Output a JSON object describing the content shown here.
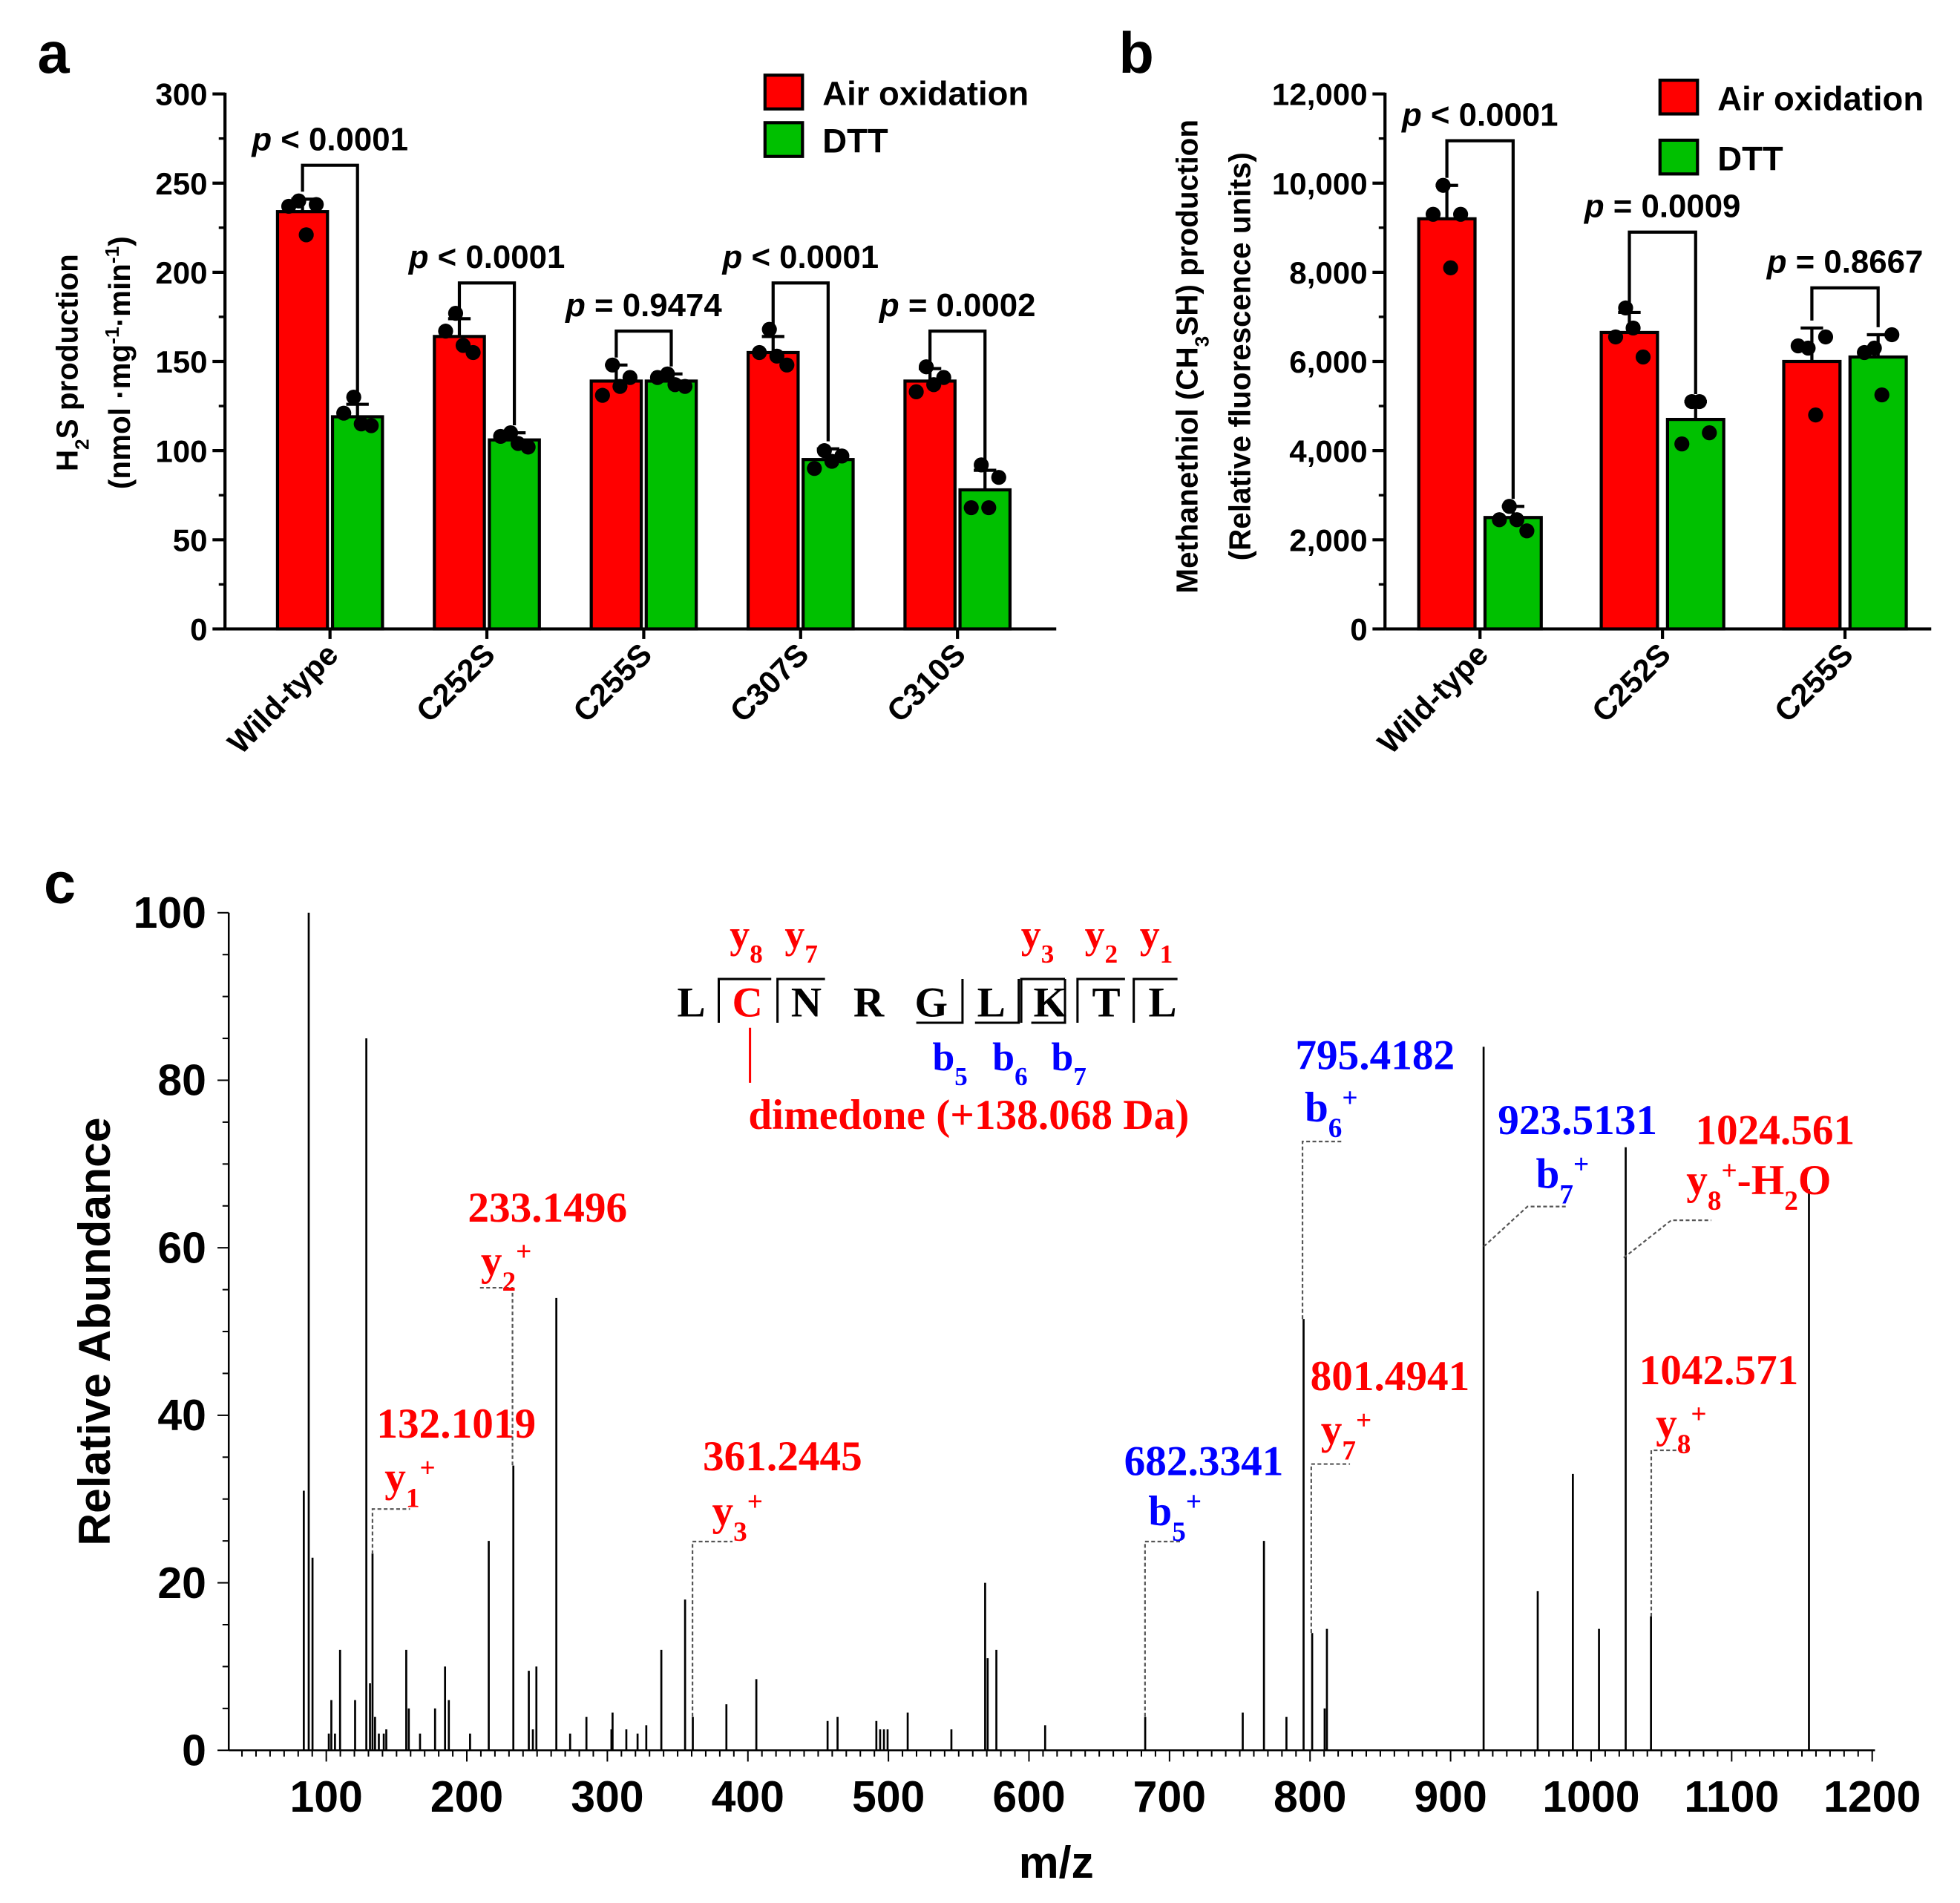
{
  "panel_labels": [
    "a",
    "b",
    "c"
  ],
  "colors": {
    "air": "#ff0000",
    "dtt": "#00c000",
    "red_text": "#ff0000",
    "blue_text": "#0000ff",
    "axis": "#000000"
  },
  "legend": {
    "air": "Air oxidation",
    "dtt": "DTT"
  },
  "p_symbol": "p",
  "chart_data": [
    {
      "id": "a",
      "type": "bar",
      "ylabel_parts": [
        {
          "t": "H"
        },
        {
          "t": "2",
          "s": "sub"
        },
        {
          "t": "S production"
        }
      ],
      "ylabel2_parts": [
        {
          "t": "(nmol ·mg"
        },
        {
          "t": "-1",
          "s": "sup"
        },
        {
          "t": "·min"
        },
        {
          "t": "-1",
          "s": "sup"
        },
        {
          "t": ")"
        }
      ],
      "ylim": [
        0,
        300
      ],
      "yticks": [
        0,
        50,
        100,
        150,
        200,
        250,
        300
      ],
      "ytick_labels": [
        "0",
        "50",
        "100",
        "150",
        "200",
        "250",
        "300"
      ],
      "yminor_step": 25,
      "categories": [
        "Wild-type",
        "C252S",
        "C255S",
        "C307S",
        "C310S"
      ],
      "series": [
        {
          "name": "Air oxidation",
          "values": [
            234,
            164,
            139,
            155,
            139
          ],
          "sd": [
            7,
            10,
            9,
            9,
            7
          ],
          "points": [
            [
              240,
              237,
              238,
              221
            ],
            [
              177,
              167,
              155,
              159
            ],
            [
              148,
              131,
              141,
              136
            ],
            [
              168,
              155,
              148,
              153
            ],
            [
              147,
              133,
              141,
              137
            ]
          ]
        },
        {
          "name": "DTT",
          "values": [
            119,
            106,
            139,
            95,
            78
          ],
          "sd": [
            7,
            4,
            4,
            6,
            11
          ],
          "points": [
            [
              130,
              121,
              114,
              115
            ],
            [
              110,
              108,
              102,
              104
            ],
            [
              143,
              141,
              136,
              137
            ],
            [
              100,
              90,
              97,
              94
            ],
            [
              92,
              68,
              85,
              68
            ]
          ]
        }
      ],
      "comparisons": [
        {
          "text": "< 0.0001",
          "level": 260
        },
        {
          "text": "< 0.0001",
          "level": 194
        },
        {
          "text": "= 0.9474",
          "level": 167
        },
        {
          "text": "< 0.0001",
          "level": 194
        },
        {
          "text": "= 0.0002",
          "level": 167
        }
      ],
      "legend_placement": "top-right"
    },
    {
      "id": "b",
      "type": "bar",
      "ylabel_parts": [
        {
          "t": "Methanethiol (CH"
        },
        {
          "t": "3",
          "s": "sub"
        },
        {
          "t": "SH) production"
        }
      ],
      "ylabel2_parts": [
        {
          "t": "(Relative fluorescence units)"
        }
      ],
      "ylim": [
        0,
        12000
      ],
      "yticks": [
        0,
        2000,
        4000,
        6000,
        8000,
        10000,
        12000
      ],
      "ytick_labels": [
        "0",
        "2,000",
        "4,000",
        "6,000",
        "8,000",
        "10,000",
        "12,000"
      ],
      "yminor_step": 1000,
      "categories": [
        "Wild-type",
        "C252S",
        "C255S"
      ],
      "series": [
        {
          "name": "Air oxidation",
          "values": [
            9200,
            6650,
            6000
          ],
          "sd": [
            750,
            450,
            750
          ],
          "points": [
            [
              9950,
              9300,
              9300,
              8100
            ],
            [
              7200,
              6550,
              6100,
              6750
            ],
            [
              6300,
              6350,
              6550,
              4800
            ]
          ]
        },
        {
          "name": "DTT",
          "values": [
            2500,
            4700,
            6100
          ],
          "sd": [
            250,
            400,
            500
          ],
          "points": [
            [
              2750,
              2450,
              2200,
              2450
            ],
            [
              5100,
              4150,
              4400,
              5100
            ],
            [
              6300,
              6200,
              6600,
              5250
            ]
          ]
        }
      ],
      "comparisons": [
        {
          "text": "< 0.0001",
          "level": 10950
        },
        {
          "text": "= 0.0009",
          "level": 8900
        },
        {
          "text": "= 0.8667",
          "level": 7650
        }
      ],
      "legend_placement": "top-right"
    },
    {
      "id": "c",
      "type": "bar",
      "subtype": "mass-spectrum",
      "xlabel": "m/z",
      "ylabel": "Relative Abundance",
      "xlim": [
        30,
        1200
      ],
      "ylim": [
        0,
        100
      ],
      "xticks": [
        100,
        200,
        300,
        400,
        500,
        600,
        700,
        800,
        900,
        1000,
        1100,
        1200
      ],
      "xtick_labels": [
        "100",
        "200",
        "300",
        "400",
        "500",
        "600",
        "700",
        "800",
        "900",
        "1000",
        "1100",
        "1200"
      ],
      "yticks": [
        0,
        20,
        40,
        60,
        80,
        100
      ],
      "ytick_labels": [
        "0",
        "20",
        "40",
        "60",
        "80",
        "100"
      ],
      "peaks": [
        [
          84.0,
          31
        ],
        [
          87.5,
          100
        ],
        [
          90.2,
          23
        ],
        [
          101.8,
          2
        ],
        [
          103.6,
          6
        ],
        [
          106.2,
          2
        ],
        [
          109.8,
          12
        ],
        [
          120.5,
          6
        ],
        [
          128.5,
          85
        ],
        [
          131.1,
          8
        ],
        [
          132.9,
          23.5
        ],
        [
          134.7,
          4
        ],
        [
          137.4,
          2
        ],
        [
          140.9,
          2
        ],
        [
          142.7,
          2.5
        ],
        [
          156.9,
          12
        ],
        [
          158.7,
          5
        ],
        [
          166.7,
          2
        ],
        [
          177.4,
          5
        ],
        [
          184.5,
          10
        ],
        [
          187.2,
          6
        ],
        [
          202.3,
          2
        ],
        [
          215.6,
          25
        ],
        [
          233.1,
          34
        ],
        [
          244.1,
          9.5
        ],
        [
          247.0,
          2.5
        ],
        [
          249.5,
          10
        ],
        [
          263.7,
          54
        ],
        [
          273.5,
          2
        ],
        [
          285.1,
          4
        ],
        [
          302.9,
          2.5
        ],
        [
          303.7,
          4.5
        ],
        [
          313.5,
          2.5
        ],
        [
          321.5,
          2
        ],
        [
          327.7,
          3
        ],
        [
          338.4,
          12
        ],
        [
          355.3,
          18
        ],
        [
          360.8,
          4
        ],
        [
          384.7,
          5.5
        ],
        [
          406.0,
          8.5
        ],
        [
          456.7,
          3.5
        ],
        [
          463.8,
          4
        ],
        [
          491.4,
          3.5
        ],
        [
          494.1,
          2.5
        ],
        [
          496.8,
          2.5
        ],
        [
          499.4,
          2.5
        ],
        [
          513.7,
          4.5
        ],
        [
          544.8,
          2.5
        ],
        [
          568.8,
          20
        ],
        [
          570.6,
          11
        ],
        [
          576.8,
          12
        ],
        [
          611.5,
          3
        ],
        [
          682.7,
          4
        ],
        [
          752.1,
          4.5
        ],
        [
          767.2,
          25
        ],
        [
          783.2,
          4
        ],
        [
          795.4,
          51.5
        ],
        [
          801.5,
          14
        ],
        [
          810.4,
          5
        ],
        [
          812.0,
          14.5
        ],
        [
          923.5,
          84
        ],
        [
          962.0,
          19
        ],
        [
          987.0,
          33
        ],
        [
          1005.6,
          14.5
        ],
        [
          1024.6,
          72
        ],
        [
          1042.6,
          16
        ],
        [
          1155.0,
          67
        ]
      ],
      "annotations": [
        {
          "value": "132.1019",
          "color": "red",
          "ion": [
            {
              "t": "y"
            },
            {
              "t": "1",
              "s": "sub"
            },
            {
              "t": "+",
              "s": "sup"
            }
          ]
        },
        {
          "value": "233.1496",
          "color": "red",
          "ion": [
            {
              "t": "y"
            },
            {
              "t": "2",
              "s": "sub"
            },
            {
              "t": "+",
              "s": "sup"
            }
          ]
        },
        {
          "value": "361.2445",
          "color": "red",
          "ion": [
            {
              "t": "y"
            },
            {
              "t": "3",
              "s": "sub"
            },
            {
              "t": "+",
              "s": "sup"
            }
          ]
        },
        {
          "value": "682.3341",
          "color": "blue",
          "ion": [
            {
              "t": "b"
            },
            {
              "t": "5",
              "s": "sub"
            },
            {
              "t": "+",
              "s": "sup"
            }
          ]
        },
        {
          "value": "795.4182",
          "color": "blue",
          "ion": [
            {
              "t": "b"
            },
            {
              "t": "6",
              "s": "sub"
            },
            {
              "t": "+",
              "s": "sup"
            }
          ]
        },
        {
          "value": "801.4941",
          "color": "red",
          "ion": [
            {
              "t": "y"
            },
            {
              "t": "7",
              "s": "sub"
            },
            {
              "t": "+",
              "s": "sup"
            }
          ]
        },
        {
          "value": "923.5131",
          "color": "blue",
          "ion": [
            {
              "t": "b"
            },
            {
              "t": "7",
              "s": "sub"
            },
            {
              "t": "+",
              "s": "sup"
            }
          ]
        },
        {
          "value": "1024.561",
          "color": "red",
          "ion": [
            {
              "t": "y"
            },
            {
              "t": "8",
              "s": "sub"
            },
            {
              "t": "+",
              "s": "sup"
            },
            {
              "t": "-H"
            },
            {
              "t": "2",
              "s": "sub"
            },
            {
              "t": "O"
            }
          ]
        },
        {
          "value": "1042.571",
          "color": "red",
          "ion": [
            {
              "t": "y"
            },
            {
              "t": "8",
              "s": "sub"
            },
            {
              "t": "+",
              "s": "sup"
            }
          ]
        }
      ],
      "peptide": {
        "residues": [
          "L",
          "C",
          "N",
          "R",
          "G",
          "L",
          "K",
          "T",
          "L"
        ],
        "modified_index": 1,
        "y_ions": [
          {
            "b": "y",
            "n": "8"
          },
          {
            "b": "y",
            "n": "7"
          },
          {
            "b": "y",
            "n": "3"
          },
          {
            "b": "y",
            "n": "2"
          },
          {
            "b": "y",
            "n": "1"
          }
        ],
        "b_ions": [
          {
            "b": "b",
            "n": "5"
          },
          {
            "b": "b",
            "n": "6"
          },
          {
            "b": "b",
            "n": "7"
          }
        ],
        "modification": "dimedone (+138.068 Da)"
      }
    }
  ]
}
